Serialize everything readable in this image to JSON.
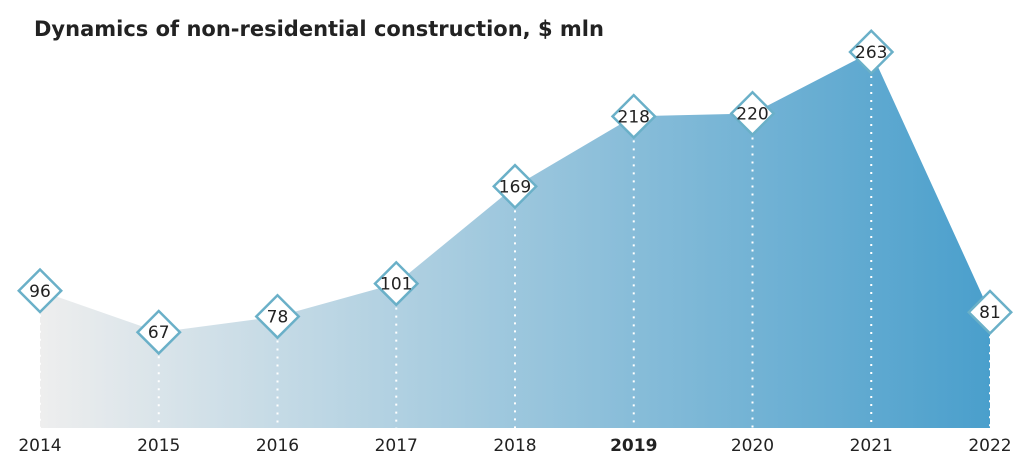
{
  "chart_data": {
    "type": "area",
    "title": "Dynamics of non-residential construction, $ mln",
    "categories": [
      "2014",
      "2015",
      "2016",
      "2017",
      "2018",
      "2019",
      "2020",
      "2021",
      "2022"
    ],
    "values": [
      96,
      67,
      78,
      101,
      169,
      218,
      220,
      263,
      81
    ],
    "color": "#4a9fcc",
    "highlight": "2019"
  }
}
